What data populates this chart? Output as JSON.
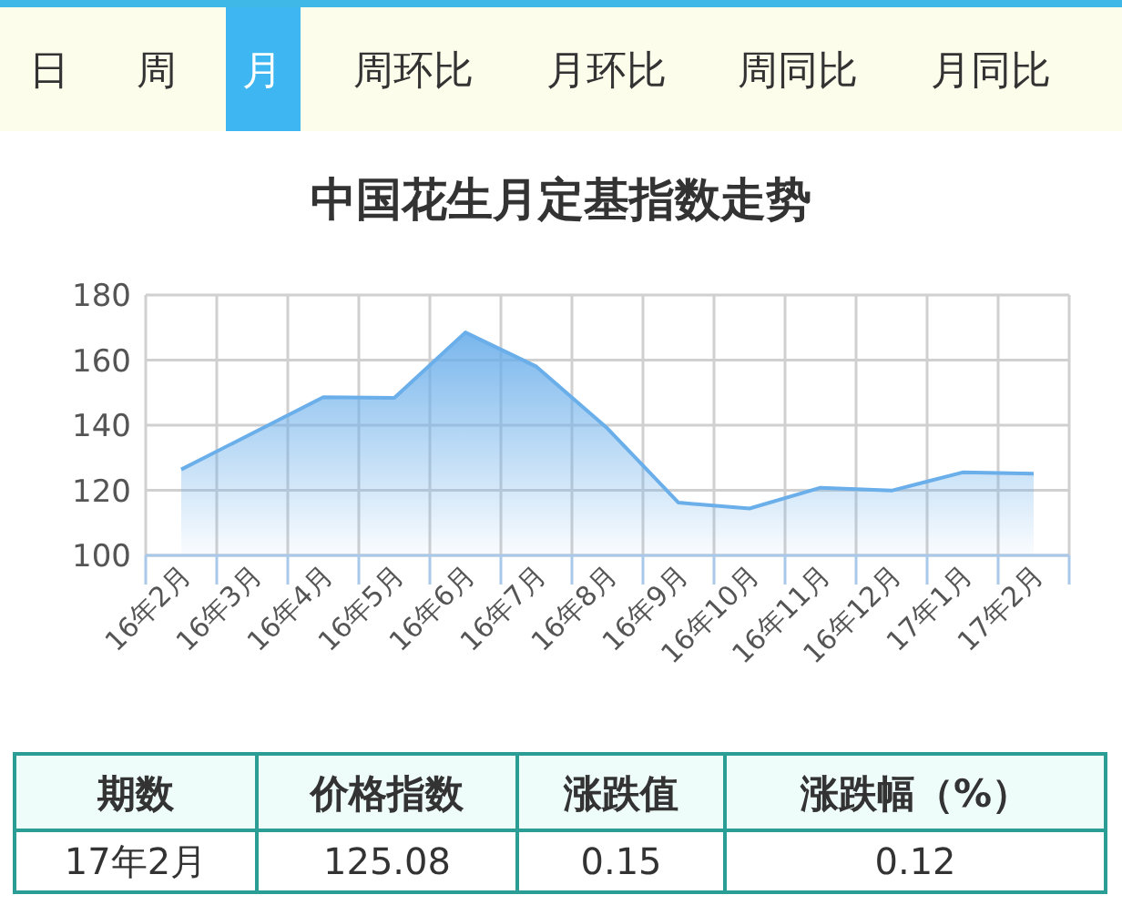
{
  "chart_data": {
    "type": "area",
    "title": "中国花生月定基指数走势",
    "categories": [
      "16年2月",
      "16年3月",
      "16年4月",
      "16年5月",
      "16年6月",
      "16年7月",
      "16年8月",
      "16年9月",
      "16年10月",
      "16年11月",
      "16年12月",
      "17年1月",
      "17年2月"
    ],
    "series": [
      {
        "color": "#6aaeea",
        "values": [
          126.4,
          137.5,
          148.6,
          148.4,
          168.5,
          158,
          139,
          116.2,
          114.4,
          120.8,
          119.9,
          125.5,
          125.08
        ]
      }
    ],
    "ylim": [
      100,
      180
    ],
    "yticks": [
      100,
      120,
      140,
      160,
      180
    ],
    "grid": true,
    "annotations": [
      "日",
      "周",
      "月",
      "周环比",
      "月环比",
      "周同比",
      "月同比",
      "期数",
      "价格指数",
      "涨跌值",
      "涨跌幅（%）",
      "17年2月",
      "125.08",
      "0.15",
      "0.12"
    ]
  }
}
